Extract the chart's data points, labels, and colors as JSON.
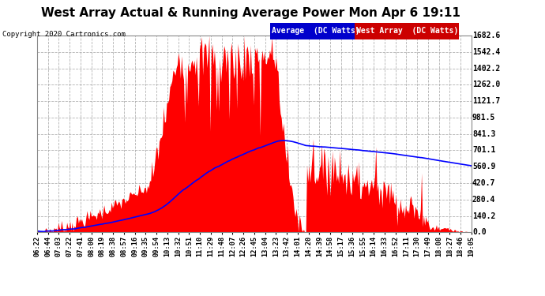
{
  "title": "West Array Actual & Running Average Power Mon Apr 6 19:11",
  "copyright": "Copyright 2020 Cartronics.com",
  "yticks": [
    0.0,
    140.2,
    280.4,
    420.7,
    560.9,
    701.1,
    841.3,
    981.5,
    1121.7,
    1262.0,
    1402.2,
    1542.4,
    1682.6
  ],
  "ymax": 1682.6,
  "ymin": 0.0,
  "bg_color": "#ffffff",
  "plot_bg_color": "#ffffff",
  "grid_color": "#aaaaaa",
  "bar_color": "#ff0000",
  "line_color": "#0000ff",
  "title_color": "#000000",
  "tick_color": "#000000",
  "legend_avg_bg": "#0000cc",
  "legend_west_bg": "#cc0000",
  "xtick_labels": [
    "06:22",
    "06:44",
    "07:03",
    "07:22",
    "07:41",
    "08:00",
    "08:19",
    "08:38",
    "08:57",
    "09:16",
    "09:35",
    "09:54",
    "10:13",
    "10:32",
    "10:51",
    "11:10",
    "11:29",
    "11:48",
    "12:07",
    "12:26",
    "12:45",
    "13:04",
    "13:23",
    "13:42",
    "14:01",
    "14:20",
    "14:39",
    "14:58",
    "15:17",
    "15:36",
    "15:55",
    "16:14",
    "16:33",
    "16:52",
    "17:11",
    "17:30",
    "17:49",
    "18:08",
    "18:27",
    "18:46",
    "19:05"
  ],
  "n_points": 410
}
